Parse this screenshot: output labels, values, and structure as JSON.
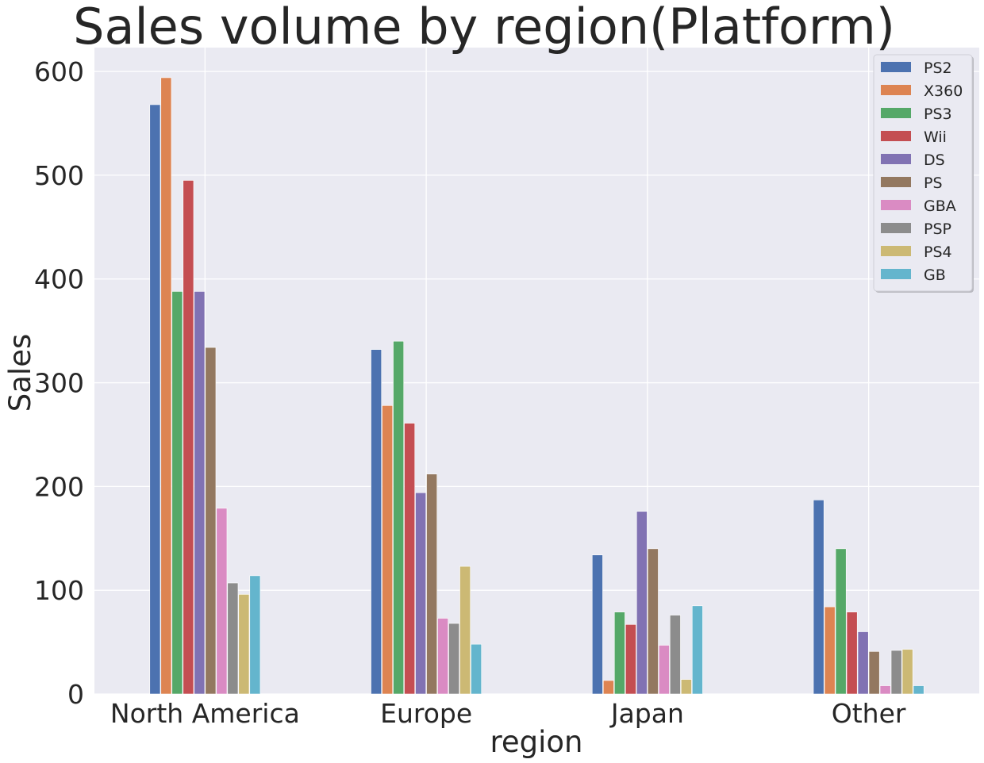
{
  "chart_data": {
    "type": "bar",
    "title": "Sales volume by region(Platform)",
    "xlabel": "region",
    "ylabel": "Sales",
    "ylim": [
      0,
      623
    ],
    "yticks": [
      0,
      100,
      200,
      300,
      400,
      500,
      600
    ],
    "ytick_labels": [
      "0",
      "100",
      "200",
      "300",
      "400",
      "500",
      "600"
    ],
    "grid": true,
    "legend_position": "top-right",
    "background": "#eaeaf2",
    "categories": [
      "North America",
      "Europe",
      "Japan",
      "Other"
    ],
    "series": [
      {
        "name": "PS2",
        "color": "#4c72b0",
        "values": [
          568,
          332,
          134,
          187
        ]
      },
      {
        "name": "X360",
        "color": "#dd8452",
        "values": [
          594,
          278,
          13,
          84
        ]
      },
      {
        "name": "PS3",
        "color": "#55a868",
        "values": [
          388,
          340,
          79,
          140
        ]
      },
      {
        "name": "Wii",
        "color": "#c44e52",
        "values": [
          495,
          261,
          67,
          79
        ]
      },
      {
        "name": "DS",
        "color": "#8172b3",
        "values": [
          388,
          194,
          176,
          60
        ]
      },
      {
        "name": "PS",
        "color": "#937860",
        "values": [
          334,
          212,
          140,
          41
        ]
      },
      {
        "name": "GBA",
        "color": "#da8bc3",
        "values": [
          179,
          73,
          47,
          8
        ]
      },
      {
        "name": "PSP",
        "color": "#8c8c8c",
        "values": [
          107,
          68,
          76,
          42
        ]
      },
      {
        "name": "PS4",
        "color": "#ccb974",
        "values": [
          96,
          123,
          14,
          43
        ]
      },
      {
        "name": "GB",
        "color": "#64b5cd",
        "values": [
          114,
          48,
          85,
          8
        ]
      }
    ]
  }
}
